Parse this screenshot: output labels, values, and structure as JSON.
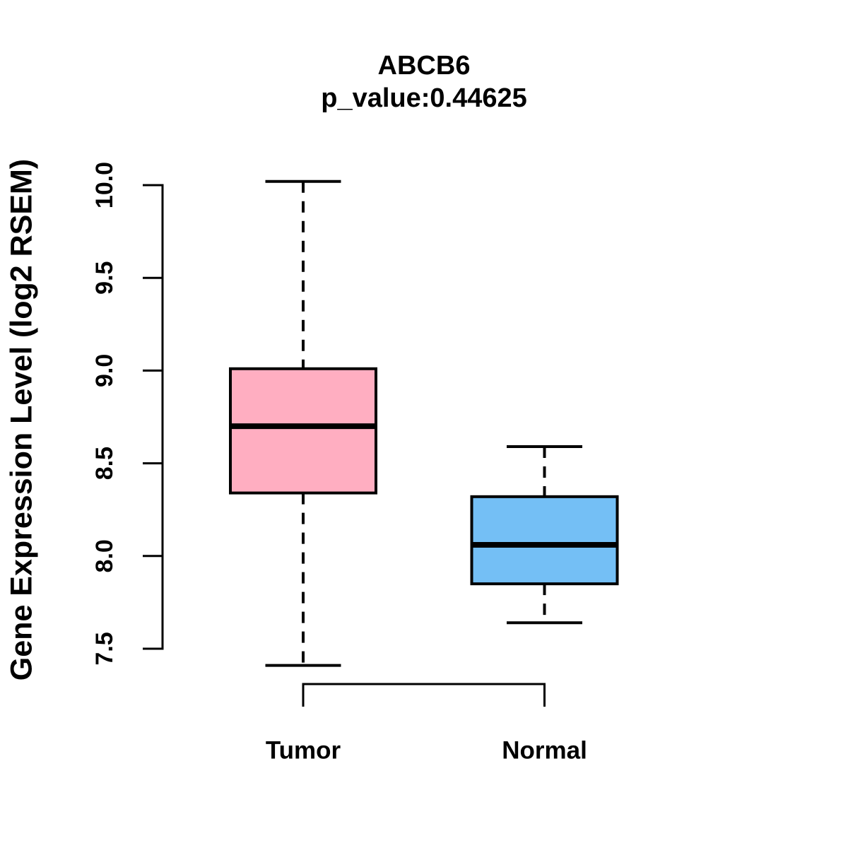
{
  "chart_data": {
    "type": "boxplot",
    "title": "ABCB6",
    "subtitle": "p_value:0.44625",
    "gene": "ABCB6",
    "p_value": 0.44625,
    "ylabel": "Gene Expression Level (log2 RSEM)",
    "xlabel": "",
    "categories": [
      "Tumor",
      "Normal"
    ],
    "ylim": [
      7.5,
      10.0
    ],
    "yticks": [
      7.5,
      8.0,
      8.5,
      9.0,
      9.5,
      10.0
    ],
    "ytick_labels": [
      "7.5",
      "8.0",
      "8.5",
      "9.0",
      "9.5",
      "10.0"
    ],
    "series": [
      {
        "name": "Tumor",
        "color": "#FFAEC1",
        "lower_whisker": 7.41,
        "q1": 8.34,
        "median": 8.7,
        "q3": 9.01,
        "upper_whisker": 10.02
      },
      {
        "name": "Normal",
        "color": "#74BFF5",
        "lower_whisker": 7.64,
        "q1": 7.85,
        "median": 8.06,
        "q3": 8.32,
        "upper_whisker": 8.59
      }
    ],
    "line_color": "#000000",
    "layout_hints": {
      "grid": false,
      "legend": "none",
      "comparison_bracket": true,
      "tick_label_rotation": -90
    }
  }
}
